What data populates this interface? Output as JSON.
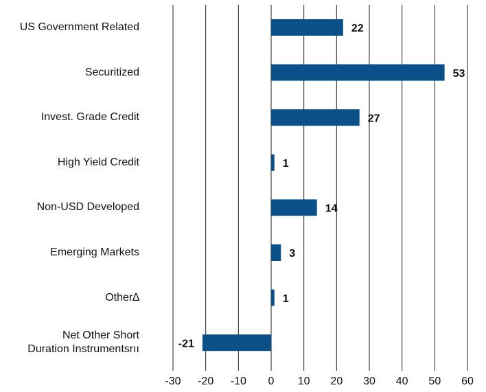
{
  "chart_data": {
    "type": "hbar",
    "categories": [
      "US Government Related",
      "Securitized",
      "Invest. Grade Credit",
      "High Yield Credit",
      "Non-USD Developed",
      "Emerging Markets",
      "Other∆",
      "Net Other Short\nDuration Instrumentsrıı"
    ],
    "values": [
      22,
      53,
      27,
      1,
      14,
      3,
      1,
      -21
    ],
    "color": "#0b5089",
    "xlim": [
      -30,
      60
    ],
    "xticks": [
      -30,
      -20,
      -10,
      0,
      10,
      20,
      30,
      40,
      50,
      60
    ],
    "grid": true
  }
}
